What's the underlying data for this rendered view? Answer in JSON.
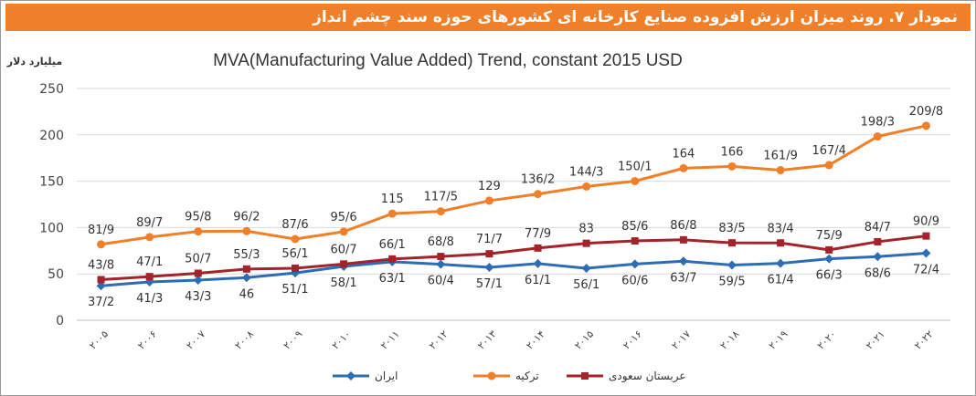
{
  "header": {
    "title": "نمودار ۷. روند میزان ارزش افزوده صنایع کارخانه ای کشورهای حوزه سند چشم انداز"
  },
  "chart_data": {
    "type": "line",
    "title": "MVA(Manufacturing Value Added) Trend, constant 2015 USD",
    "ylabel": "میلیارد دلار",
    "xlabel": "",
    "ylim": [
      0,
      250
    ],
    "yticks": [
      0,
      50,
      100,
      150,
      200,
      250
    ],
    "grid": true,
    "legend_position": "bottom",
    "categories": [
      "۲۰۰۵",
      "۲۰۰۶",
      "۲۰۰۷",
      "۲۰۰۸",
      "۲۰۰۹",
      "۲۰۱۰",
      "۲۰۱۱",
      "۲۰۱۲",
      "۲۰۱۳",
      "۲۰۱۴",
      "۲۰۱۵",
      "۲۰۱۶",
      "۲۰۱۷",
      "۲۰۱۸",
      "۲۰۱۹",
      "۲۰۲۰",
      "۲۰۲۱",
      "۲۰۲۲"
    ],
    "series": [
      {
        "name": "ایران",
        "color": "#2e6db4",
        "marker": "diamond",
        "label_position": "below",
        "values": [
          37.2,
          41.3,
          43.3,
          46,
          51.1,
          58.1,
          63.1,
          60.4,
          57.1,
          61.1,
          56.1,
          60.6,
          63.7,
          59.5,
          61.4,
          66.3,
          68.6,
          72.4
        ],
        "labels": [
          "37/2",
          "41/3",
          "43/3",
          "46",
          "51/1",
          "58/1",
          "63/1",
          "60/4",
          "57/1",
          "61/1",
          "56/1",
          "60/6",
          "63/7",
          "59/5",
          "61/4",
          "66/3",
          "68/6",
          "72/4"
        ]
      },
      {
        "name": "ترکیه",
        "color": "#f07f2a",
        "marker": "circle",
        "label_position": "above",
        "values": [
          81.9,
          89.7,
          95.8,
          96.2,
          87.6,
          95.6,
          115,
          117.5,
          129,
          136.2,
          144.3,
          150.1,
          164,
          166,
          161.9,
          167.4,
          198.3,
          209.8
        ],
        "labels": [
          "81/9",
          "89/7",
          "95/8",
          "96/2",
          "87/6",
          "95/6",
          "115",
          "117/5",
          "129",
          "136/2",
          "144/3",
          "150/1",
          "164",
          "166",
          "161/9",
          "167/4",
          "198/3",
          "209/8"
        ]
      },
      {
        "name": "عربستان سعودی",
        "color": "#a3232a",
        "marker": "square",
        "label_position": "above",
        "values": [
          43.8,
          47.1,
          50.7,
          55.3,
          56.1,
          60.7,
          66.1,
          68.8,
          71.7,
          77.9,
          83,
          85.6,
          86.8,
          83.5,
          83.4,
          75.9,
          84.7,
          90.9
        ],
        "labels": [
          "43/8",
          "47/1",
          "50/7",
          "55/3",
          "56/1",
          "60/7",
          "66/1",
          "68/8",
          "71/7",
          "77/9",
          "83",
          "85/6",
          "86/8",
          "83/5",
          "83/4",
          "75/9",
          "84/7",
          "90/9"
        ]
      }
    ]
  }
}
